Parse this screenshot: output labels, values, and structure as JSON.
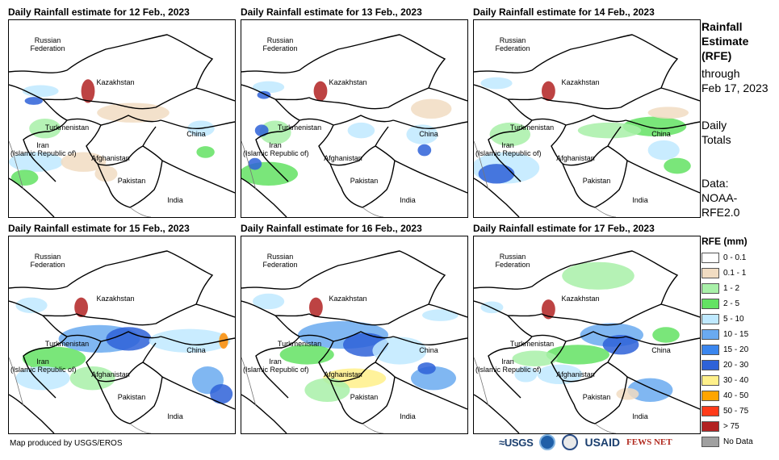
{
  "panels": [
    {
      "title": "Daily Rainfall estimate for 12 Feb., 2023",
      "blobs": [
        [
          0.14,
          0.36,
          0.08,
          0.03,
          "#bfe9ff"
        ],
        [
          0.11,
          0.41,
          0.04,
          0.02,
          "#2e62d8"
        ],
        [
          0.35,
          0.36,
          0.03,
          0.06,
          "#b22222"
        ],
        [
          0.16,
          0.55,
          0.07,
          0.05,
          "#a8f0a8"
        ],
        [
          0.12,
          0.72,
          0.12,
          0.05,
          "#bfe9ff"
        ],
        [
          0.07,
          0.8,
          0.06,
          0.04,
          "#63e263"
        ],
        [
          0.33,
          0.72,
          0.1,
          0.05,
          "#f1dcc2"
        ],
        [
          0.55,
          0.47,
          0.16,
          0.05,
          "#f1dcc2"
        ],
        [
          0.85,
          0.55,
          0.06,
          0.04,
          "#bfe9ff"
        ],
        [
          0.87,
          0.67,
          0.04,
          0.03,
          "#63e263"
        ],
        [
          0.43,
          0.78,
          0.05,
          0.04,
          "#f1dcc2"
        ]
      ]
    },
    {
      "title": "Daily Rainfall estimate for 13 Feb., 2023",
      "blobs": [
        [
          0.12,
          0.34,
          0.07,
          0.03,
          "#bfe9ff"
        ],
        [
          0.1,
          0.38,
          0.03,
          0.02,
          "#2e62d8"
        ],
        [
          0.35,
          0.36,
          0.03,
          0.05,
          "#b22222"
        ],
        [
          0.15,
          0.57,
          0.07,
          0.06,
          "#a8f0a8"
        ],
        [
          0.09,
          0.56,
          0.03,
          0.03,
          "#2e62d8"
        ],
        [
          0.12,
          0.78,
          0.13,
          0.06,
          "#63e263"
        ],
        [
          0.06,
          0.73,
          0.03,
          0.03,
          "#2e62d8"
        ],
        [
          0.84,
          0.45,
          0.09,
          0.05,
          "#f1dcc2"
        ],
        [
          0.8,
          0.58,
          0.07,
          0.05,
          "#bfe9ff"
        ],
        [
          0.81,
          0.66,
          0.03,
          0.03,
          "#2e62d8"
        ],
        [
          0.53,
          0.56,
          0.06,
          0.04,
          "#bfe9ff"
        ]
      ]
    },
    {
      "title": "Daily Rainfall estimate for 14 Feb., 2023",
      "blobs": [
        [
          0.1,
          0.32,
          0.07,
          0.03,
          "#bfe9ff"
        ],
        [
          0.33,
          0.36,
          0.03,
          0.05,
          "#b22222"
        ],
        [
          0.16,
          0.58,
          0.09,
          0.06,
          "#a8f0a8"
        ],
        [
          0.14,
          0.75,
          0.15,
          0.08,
          "#bfe9ff"
        ],
        [
          0.1,
          0.78,
          0.08,
          0.05,
          "#2e62d8"
        ],
        [
          0.8,
          0.54,
          0.14,
          0.05,
          "#63e263"
        ],
        [
          0.84,
          0.66,
          0.07,
          0.05,
          "#bfe9ff"
        ],
        [
          0.9,
          0.74,
          0.06,
          0.04,
          "#63e263"
        ],
        [
          0.6,
          0.56,
          0.14,
          0.04,
          "#a8f0a8"
        ],
        [
          0.86,
          0.47,
          0.09,
          0.03,
          "#f1dcc2"
        ]
      ]
    },
    {
      "title": "Daily Rainfall estimate for 15 Feb., 2023",
      "blobs": [
        [
          0.1,
          0.35,
          0.07,
          0.04,
          "#bfe9ff"
        ],
        [
          0.32,
          0.36,
          0.03,
          0.05,
          "#b22222"
        ],
        [
          0.4,
          0.52,
          0.18,
          0.07,
          "#6aaaf0"
        ],
        [
          0.53,
          0.52,
          0.1,
          0.06,
          "#2e62d8"
        ],
        [
          0.8,
          0.53,
          0.18,
          0.06,
          "#bfe9ff"
        ],
        [
          0.2,
          0.62,
          0.14,
          0.06,
          "#63e263"
        ],
        [
          0.15,
          0.72,
          0.12,
          0.06,
          "#bfe9ff"
        ],
        [
          0.37,
          0.72,
          0.1,
          0.06,
          "#a8f0a8"
        ],
        [
          0.88,
          0.73,
          0.07,
          0.07,
          "#6aaaf0"
        ],
        [
          0.94,
          0.8,
          0.05,
          0.05,
          "#2e62d8"
        ],
        [
          0.95,
          0.53,
          0.02,
          0.04,
          "#ff8c00"
        ]
      ]
    },
    {
      "title": "Daily Rainfall estimate for 16 Feb., 2023",
      "blobs": [
        [
          0.12,
          0.33,
          0.07,
          0.04,
          "#bfe9ff"
        ],
        [
          0.33,
          0.36,
          0.03,
          0.05,
          "#b22222"
        ],
        [
          0.45,
          0.5,
          0.2,
          0.07,
          "#6aaaf0"
        ],
        [
          0.55,
          0.55,
          0.1,
          0.06,
          "#2e62d8"
        ],
        [
          0.7,
          0.58,
          0.12,
          0.07,
          "#bfe9ff"
        ],
        [
          0.29,
          0.6,
          0.12,
          0.05,
          "#63e263"
        ],
        [
          0.5,
          0.72,
          0.14,
          0.05,
          "#fff08a"
        ],
        [
          0.38,
          0.78,
          0.1,
          0.06,
          "#a8f0a8"
        ],
        [
          0.85,
          0.72,
          0.1,
          0.06,
          "#6aaaf0"
        ],
        [
          0.82,
          0.67,
          0.04,
          0.03,
          "#2e62d8"
        ],
        [
          0.88,
          0.4,
          0.08,
          0.03,
          "#bfe9ff"
        ]
      ]
    },
    {
      "title": "Daily Rainfall estimate for 17 Feb., 2023",
      "blobs": [
        [
          0.55,
          0.2,
          0.16,
          0.07,
          "#a8f0a8"
        ],
        [
          0.08,
          0.36,
          0.05,
          0.03,
          "#bfe9ff"
        ],
        [
          0.33,
          0.37,
          0.03,
          0.05,
          "#b22222"
        ],
        [
          0.61,
          0.5,
          0.14,
          0.06,
          "#6aaaf0"
        ],
        [
          0.65,
          0.55,
          0.08,
          0.05,
          "#2e62d8"
        ],
        [
          0.46,
          0.6,
          0.14,
          0.05,
          "#63e263"
        ],
        [
          0.27,
          0.62,
          0.1,
          0.04,
          "#a8f0a8"
        ],
        [
          0.38,
          0.7,
          0.1,
          0.05,
          "#bfe9ff"
        ],
        [
          0.78,
          0.78,
          0.1,
          0.06,
          "#6aaaf0"
        ],
        [
          0.68,
          0.8,
          0.05,
          0.03,
          "#f1dcc2"
        ],
        [
          0.23,
          0.7,
          0.05,
          0.04,
          "#bfe9ff"
        ],
        [
          0.85,
          0.5,
          0.06,
          0.04,
          "#63e263"
        ]
      ]
    }
  ],
  "labels": {
    "russia": "Russian\nFederation",
    "kazakhstan": "Kazakhstan",
    "turkmenistan": "Turkmenistan",
    "iran": "Iran\n(Islamic Republic of)",
    "afghanistan": "Afghanistan",
    "china": "China",
    "pakistan": "Pakistan",
    "india": "India"
  },
  "sidebar": {
    "heading_line1": "Rainfall",
    "heading_line2": "Estimate",
    "heading_line3": "(RFE)",
    "through": "through",
    "date": "Feb 17, 2023",
    "totals_line1": "Daily",
    "totals_line2": "Totals",
    "data_line1": "Data:",
    "data_line2": "NOAA-",
    "data_line3": "RFE2.0"
  },
  "legend": {
    "title": "RFE (mm)",
    "items": [
      {
        "label": "0 - 0.1",
        "color": "#ffffff"
      },
      {
        "label": "0.1 - 1",
        "color": "#f1dcc2"
      },
      {
        "label": "1 - 2",
        "color": "#a8f0a8"
      },
      {
        "label": "2 - 5",
        "color": "#63e263"
      },
      {
        "label": "5 - 10",
        "color": "#bfe9ff"
      },
      {
        "label": "10 - 15",
        "color": "#6aaaf0"
      },
      {
        "label": "15 - 20",
        "color": "#3a86ee"
      },
      {
        "label": "20 - 30",
        "color": "#2e62d8"
      },
      {
        "label": "30 - 40",
        "color": "#fff08a"
      },
      {
        "label": "40 - 50",
        "color": "#ffa500"
      },
      {
        "label": "50 - 75",
        "color": "#ff3b1a"
      },
      {
        "label": "> 75",
        "color": "#b22222"
      },
      {
        "label": "No Data",
        "color": "#a0a0a0"
      }
    ]
  },
  "footer": {
    "credit": "Map produced by USGS/EROS"
  },
  "logos": {
    "usgs": "≈USGS",
    "usaid": "USAID",
    "fews": "FEWS NET"
  }
}
